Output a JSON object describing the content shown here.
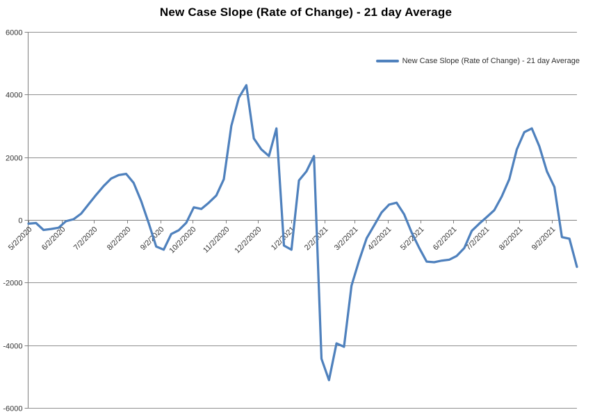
{
  "title": "New Case Slope (Rate of Change) - 21 day Average",
  "legend": {
    "label": "New Case Slope (Rate of Change) - 21 day Average",
    "marker": "line-sample"
  },
  "colors": {
    "series": "#4F81BD",
    "gridline": "#8E8E8E",
    "axis": "#7F7F7F",
    "tick_text": "#333333",
    "title_text": "#000000",
    "background": "#FFFFFF"
  },
  "chart_data": {
    "type": "line",
    "title": "New Case Slope (Rate of Change) - 21 day Average",
    "grid": "horizontal",
    "legend_position": "top-right",
    "ylim": [
      -6000,
      6000
    ],
    "y_ticks": [
      6000,
      4000,
      2000,
      0,
      -2000,
      -4000,
      -6000
    ],
    "x_tick_labels": [
      "5/2/2020",
      "6/2/2020",
      "7/2/2020",
      "8/2/2020",
      "9/2/2020",
      "10/2/2020",
      "11/2/2020",
      "12/2/2020",
      "1/2/2021",
      "2/2/2021",
      "3/2/2021",
      "4/2/2021",
      "5/2/2021",
      "6/2/2021",
      "7/2/2021",
      "8/2/2021",
      "9/2/2021"
    ],
    "x": [
      "5/2/2020",
      "5/9/2020",
      "5/16/2020",
      "5/23/2020",
      "5/30/2020",
      "6/6/2020",
      "6/13/2020",
      "6/20/2020",
      "6/27/2020",
      "7/4/2020",
      "7/11/2020",
      "7/18/2020",
      "7/25/2020",
      "8/1/2020",
      "8/8/2020",
      "8/15/2020",
      "8/22/2020",
      "8/29/2020",
      "9/5/2020",
      "9/12/2020",
      "9/19/2020",
      "9/26/2020",
      "10/3/2020",
      "10/10/2020",
      "10/17/2020",
      "10/24/2020",
      "10/31/2020",
      "11/7/2020",
      "11/14/2020",
      "11/21/2020",
      "11/28/2020",
      "12/5/2020",
      "12/12/2020",
      "12/19/2020",
      "12/26/2020",
      "1/2/2021",
      "1/9/2021",
      "1/16/2021",
      "1/23/2021",
      "1/30/2021",
      "2/6/2021",
      "2/13/2021",
      "2/20/2021",
      "2/27/2021",
      "3/6/2021",
      "3/13/2021",
      "3/20/2021",
      "3/27/2021",
      "4/3/2021",
      "4/10/2021",
      "4/17/2021",
      "4/24/2021",
      "5/1/2021",
      "5/8/2021",
      "5/15/2021",
      "5/22/2021",
      "5/29/2021",
      "6/5/2021",
      "6/12/2021",
      "6/19/2021",
      "6/26/2021",
      "7/3/2021",
      "7/10/2021",
      "7/17/2021",
      "7/24/2021",
      "7/31/2021",
      "8/7/2021",
      "8/14/2021",
      "8/21/2021",
      "8/28/2021",
      "9/4/2021",
      "9/11/2021",
      "9/18/2021",
      "9/25/2021"
    ],
    "series": [
      {
        "name": "New Case Slope (Rate of Change) - 21 day Average",
        "values": [
          -120,
          -100,
          -320,
          -290,
          -250,
          -40,
          20,
          200,
          500,
          800,
          1080,
          1320,
          1430,
          1470,
          1180,
          600,
          -100,
          -850,
          -950,
          -450,
          -330,
          -90,
          400,
          350,
          550,
          780,
          1300,
          3000,
          3900,
          4300,
          2600,
          2250,
          2040,
          2920,
          -820,
          -950,
          1260,
          1550,
          2040,
          -4430,
          -5115,
          -3940,
          -4050,
          -2100,
          -1300,
          -590,
          -180,
          240,
          490,
          550,
          180,
          -400,
          -890,
          -1330,
          -1350,
          -1300,
          -1270,
          -1150,
          -900,
          -350,
          -120,
          90,
          310,
          750,
          1300,
          2250,
          2800,
          2920,
          2350,
          1550,
          1050,
          -550,
          -600,
          -1500
        ]
      }
    ]
  }
}
